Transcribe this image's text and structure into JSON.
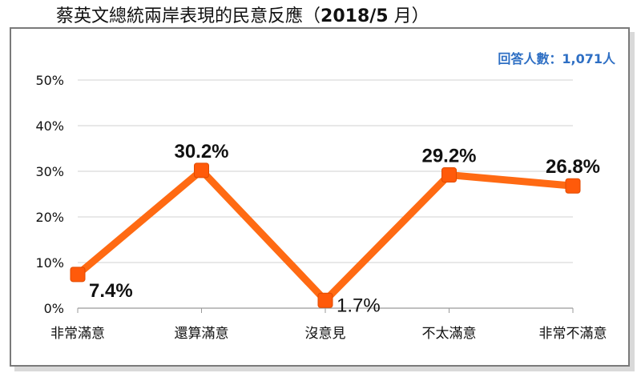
{
  "title": {
    "main": "蔡英文總統兩岸表現的民意反應（",
    "period": "2018/5",
    "suffix": " 月）"
  },
  "respondents": "回答人數：1,071人",
  "chart_data": {
    "type": "line",
    "title": "蔡英文總統兩岸表現的民意反應（2018/5 月）",
    "categories": [
      "非常滿意",
      "還算滿意",
      "沒意見",
      "不太滿意",
      "非常不滿意"
    ],
    "values": [
      7.4,
      30.2,
      1.7,
      29.2,
      26.8
    ],
    "data_labels": [
      "7.4%",
      "30.2%",
      "1.7%",
      "29.2%",
      "26.8%"
    ],
    "ylim": [
      0,
      50
    ],
    "y_ticks": [
      0,
      10,
      20,
      30,
      40,
      50
    ],
    "y_tick_labels": [
      "0%",
      "10%",
      "20%",
      "30%",
      "40%",
      "50%"
    ],
    "grid": true,
    "series_color": "#ff6a13",
    "marker_color": "#ff5a0a",
    "label_color": "#111111"
  }
}
